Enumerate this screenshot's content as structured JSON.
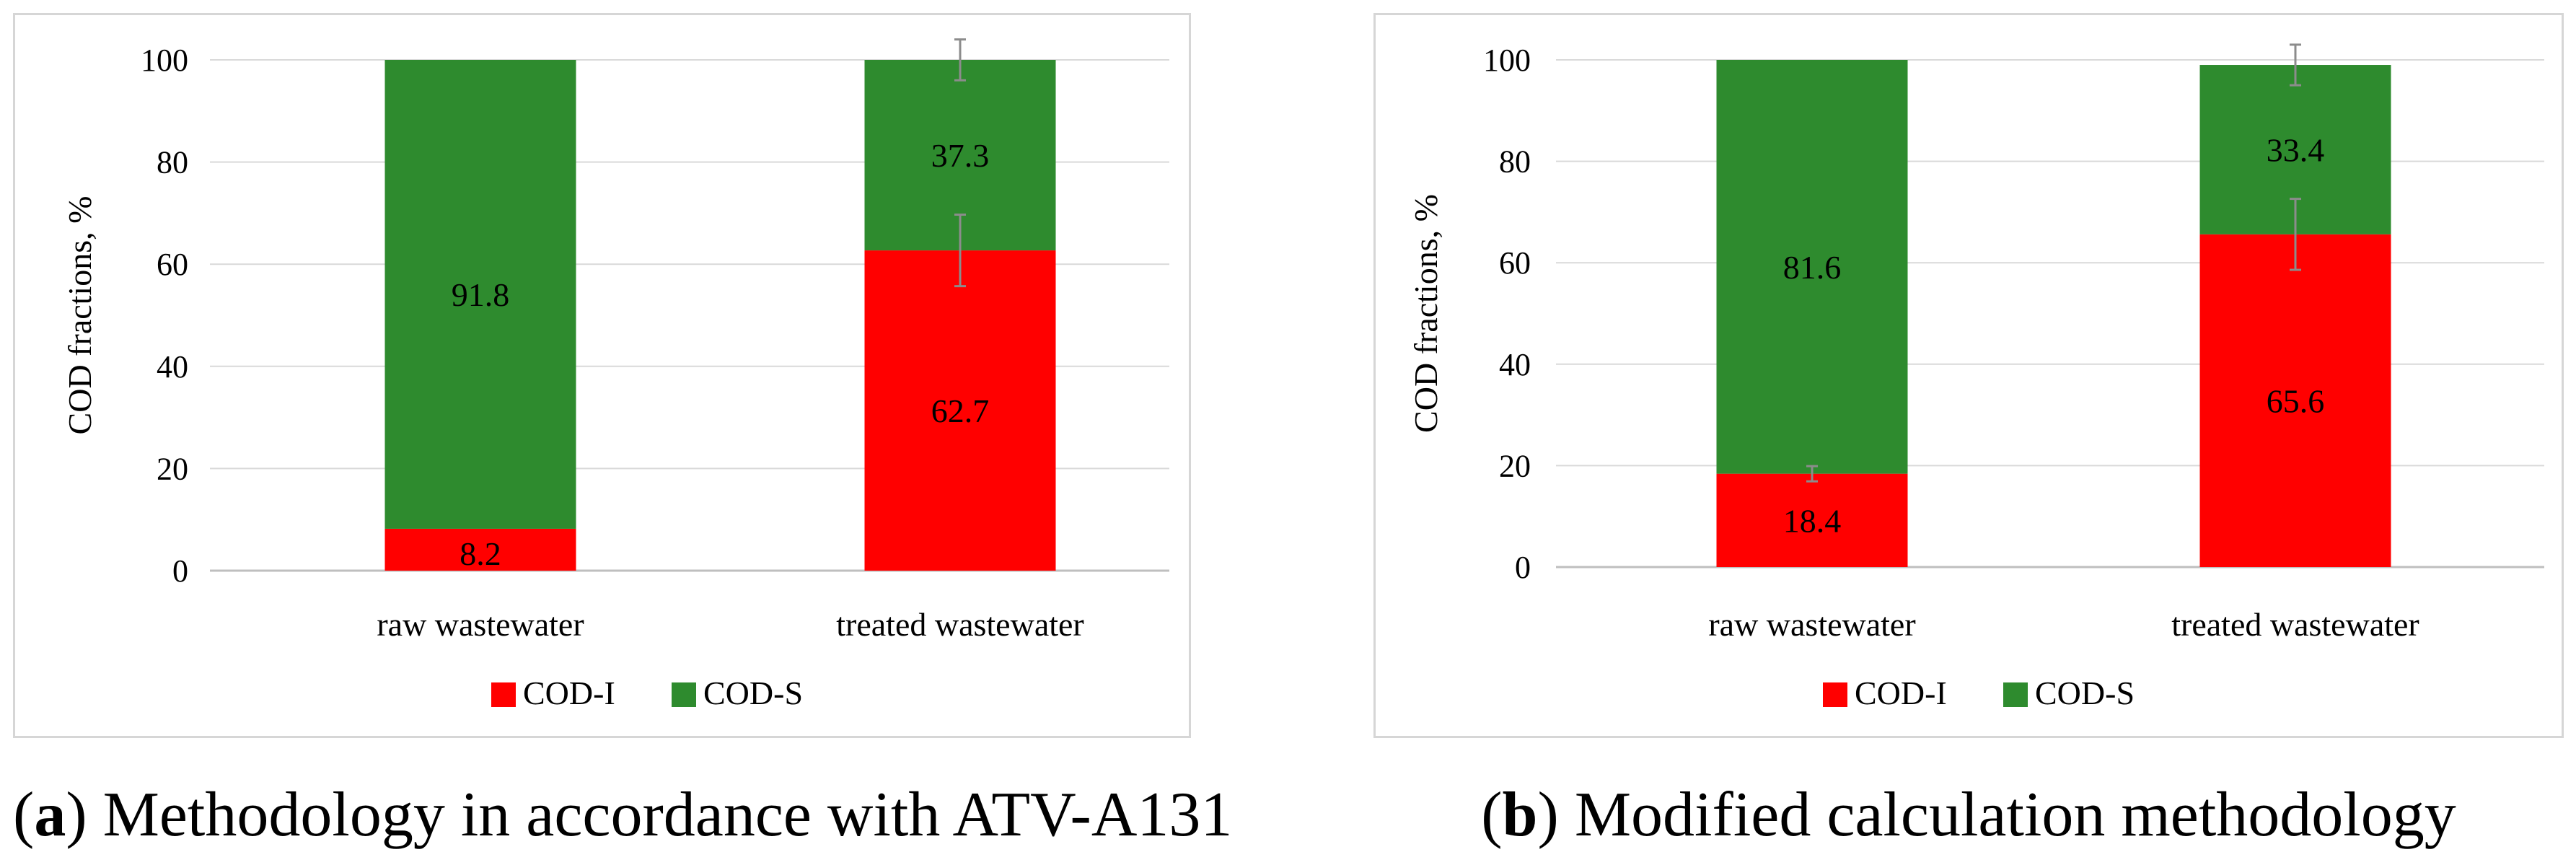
{
  "colors": {
    "cod_i": "#ff0000",
    "cod_s": "#2e8b2e",
    "grid": "#d9d9d9",
    "axis": "#bfbfbf",
    "errorbar": "#8c8c8c"
  },
  "chart_data": [
    {
      "type": "bar",
      "stacked": true,
      "panel": "a",
      "categories": [
        "raw wastewater",
        "treated wastewater"
      ],
      "series": [
        {
          "name": "COD-I",
          "values": [
            8.2,
            62.7
          ],
          "labels": [
            "8.2",
            "62.7"
          ],
          "error": [
            0,
            7
          ]
        },
        {
          "name": "COD-S",
          "values": [
            91.8,
            37.3
          ],
          "labels": [
            "91.8",
            "37.3"
          ],
          "error": [
            0,
            4
          ]
        }
      ],
      "ylabel": "COD fractions, %",
      "xlabel": "",
      "ylim": [
        0,
        100
      ],
      "yticks": [
        "0",
        "20",
        "40",
        "60",
        "80",
        "100"
      ],
      "legend": "bottom",
      "grid": true,
      "caption_letter": "a",
      "caption_text": " Methodology in accordance with ATV-A131"
    },
    {
      "type": "bar",
      "stacked": true,
      "panel": "b",
      "categories": [
        "raw wastewater",
        "treated wastewater"
      ],
      "series": [
        {
          "name": "COD-I",
          "values": [
            18.4,
            65.6
          ],
          "labels": [
            "18.4",
            "65.6"
          ],
          "error": [
            1.5,
            7
          ]
        },
        {
          "name": "COD-S",
          "values": [
            81.6,
            33.4
          ],
          "labels": [
            "81.6",
            "33.4"
          ],
          "error": [
            0,
            4
          ]
        }
      ],
      "ylabel": "COD fractions, %",
      "xlabel": "",
      "ylim": [
        0,
        100
      ],
      "yticks": [
        "0",
        "20",
        "40",
        "60",
        "80",
        "100"
      ],
      "legend": "bottom",
      "grid": true,
      "caption_letter": "b",
      "caption_text": " Modified calculation methodology"
    }
  ]
}
